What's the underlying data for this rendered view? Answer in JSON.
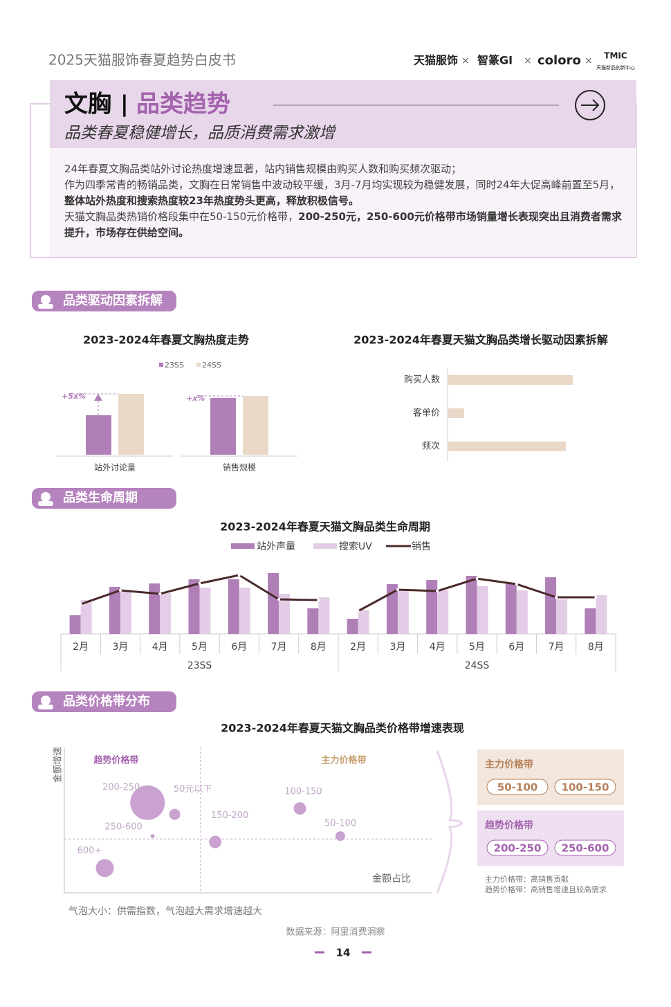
{
  "header": {
    "title": "2025天猫服饰春夏趋势白皮书",
    "logos": [
      "天猫服饰",
      "智篆GI",
      "coloro",
      "TMIC"
    ],
    "logo_sub": "天猫新品创新中心"
  },
  "banner": {
    "category": "文胸",
    "separator": "|",
    "heading": "品类趋势",
    "subtitle": "品类春夏稳健增长，品质消费需求激增"
  },
  "summary": [
    [
      {
        "text": "24年春夏文胸品类站外讨论热度增速显著，站内销售规模由购买人数和购买频次驱动；",
        "bold": false
      }
    ],
    [
      {
        "text": "作为四季常青的畅销品类，文胸在日常销售中波动较平缓，3月-7月均实现较为稳健发展，同时24年大促高峰前置至5月，",
        "bold": false
      },
      {
        "text": "整体站外热度和搜索热度较23年热度势头更高，释放积极信号。",
        "bold": true
      }
    ],
    [
      {
        "text": "天猫文胸品类热销价格段集中在50-150元价格带，",
        "bold": false
      },
      {
        "text": "200-250元，250-600元价格带市场销量增长表现突出且消费者需求提升，市场存在供给空间。",
        "bold": true
      }
    ]
  ],
  "sections": [
    "品类驱动因素拆解",
    "品类生命周期",
    "品类价格带分布"
  ],
  "heat": {
    "title": "2023-2024年春夏文胸热度走势",
    "series": [
      {
        "name": "23SS",
        "color": "#b07fb8"
      },
      {
        "name": "24SS",
        "color": "#ead9c8"
      }
    ],
    "groups": [
      {
        "name": "站外讨论量",
        "values": [
          57,
          88
        ],
        "annotation": "+5x%"
      },
      {
        "name": "销售规模",
        "values": [
          82,
          85
        ],
        "annotation": "+x%"
      }
    ]
  },
  "drivers": {
    "title": "2023-2024年春夏天猫文胸品类增长驱动因素拆解",
    "color": "#ead9c8",
    "categories": [
      "购买人数",
      "客单价",
      "频次"
    ],
    "values": [
      180,
      23,
      170
    ]
  },
  "lifecycle": {
    "title": "2023-2024年春夏天猫文胸品类生命周期",
    "series": [
      {
        "name": "站外声量",
        "color": "#b07fb8",
        "kind": "bar"
      },
      {
        "name": "搜索UV",
        "color": "#e3cde6",
        "kind": "bar"
      },
      {
        "name": "销售",
        "color": "#4a2a2a",
        "kind": "line"
      }
    ],
    "groups": [
      {
        "name": "23SS",
        "categories": [
          "2月",
          "3月",
          "4月",
          "5月",
          "6月",
          "7月",
          "8月"
        ],
        "values": [
          [
            27,
            68,
            73,
            79,
            79,
            88,
            37
          ],
          [
            49,
            61,
            59,
            67,
            67,
            58,
            53
          ],
          [
            43,
            63,
            58,
            73,
            85,
            50,
            49
          ]
        ]
      },
      {
        "name": "24SS",
        "categories": [
          "2月",
          "3月",
          "4月",
          "5月",
          "6月",
          "7月",
          "8月"
        ],
        "values": [
          [
            22,
            72,
            78,
            84,
            74,
            82,
            37
          ],
          [
            35,
            63,
            63,
            69,
            63,
            50,
            56
          ],
          [
            33,
            64,
            62,
            80,
            72,
            53,
            53
          ]
        ]
      }
    ]
  },
  "price": {
    "title": "2023-2024年春夏天猫文胸品类价格带增速表现",
    "y_label": "金额增速",
    "x_label": "金额占比",
    "quadrants": [
      "趋势价格带",
      "主力价格带"
    ],
    "xlim": [
      0,
      100
    ],
    "ylim": [
      0,
      100
    ],
    "x_divider": 37,
    "y_divider": 37,
    "color": "#c9a2d0",
    "bubbles": [
      {
        "label": "200-250",
        "x": 22.6,
        "y": 62,
        "size": 25
      },
      {
        "label": "50元以下",
        "x": 30,
        "y": 54,
        "size": 8
      },
      {
        "label": "250-600",
        "x": 24,
        "y": 39,
        "size": 3
      },
      {
        "label": "600+",
        "x": 11,
        "y": 17,
        "size": 13
      },
      {
        "label": "100-150",
        "x": 64,
        "y": 58,
        "size": 9
      },
      {
        "label": "150-200",
        "x": 41,
        "y": 35,
        "size": 9
      },
      {
        "label": "50-100",
        "x": 75,
        "y": 39,
        "size": 7
      }
    ],
    "note": "气泡大小：供需指数，气泡越大需求增速越大",
    "panels": [
      {
        "title": "主力价格带",
        "chips": [
          "50-100",
          "100-150"
        ],
        "color": "#f3e6dc",
        "chip_color": "#b57f58"
      },
      {
        "title": "趋势价格带",
        "chips": [
          "200-250",
          "250-600"
        ],
        "color": "#efe0f1",
        "chip_color": "#a362ad"
      }
    ],
    "legend_notes": [
      "主力价格带：高销售贡献",
      "趋势价格带：高销售增速且较高需求"
    ]
  },
  "footer": {
    "source": "数据来源：阿里消费洞察",
    "page": "14"
  }
}
